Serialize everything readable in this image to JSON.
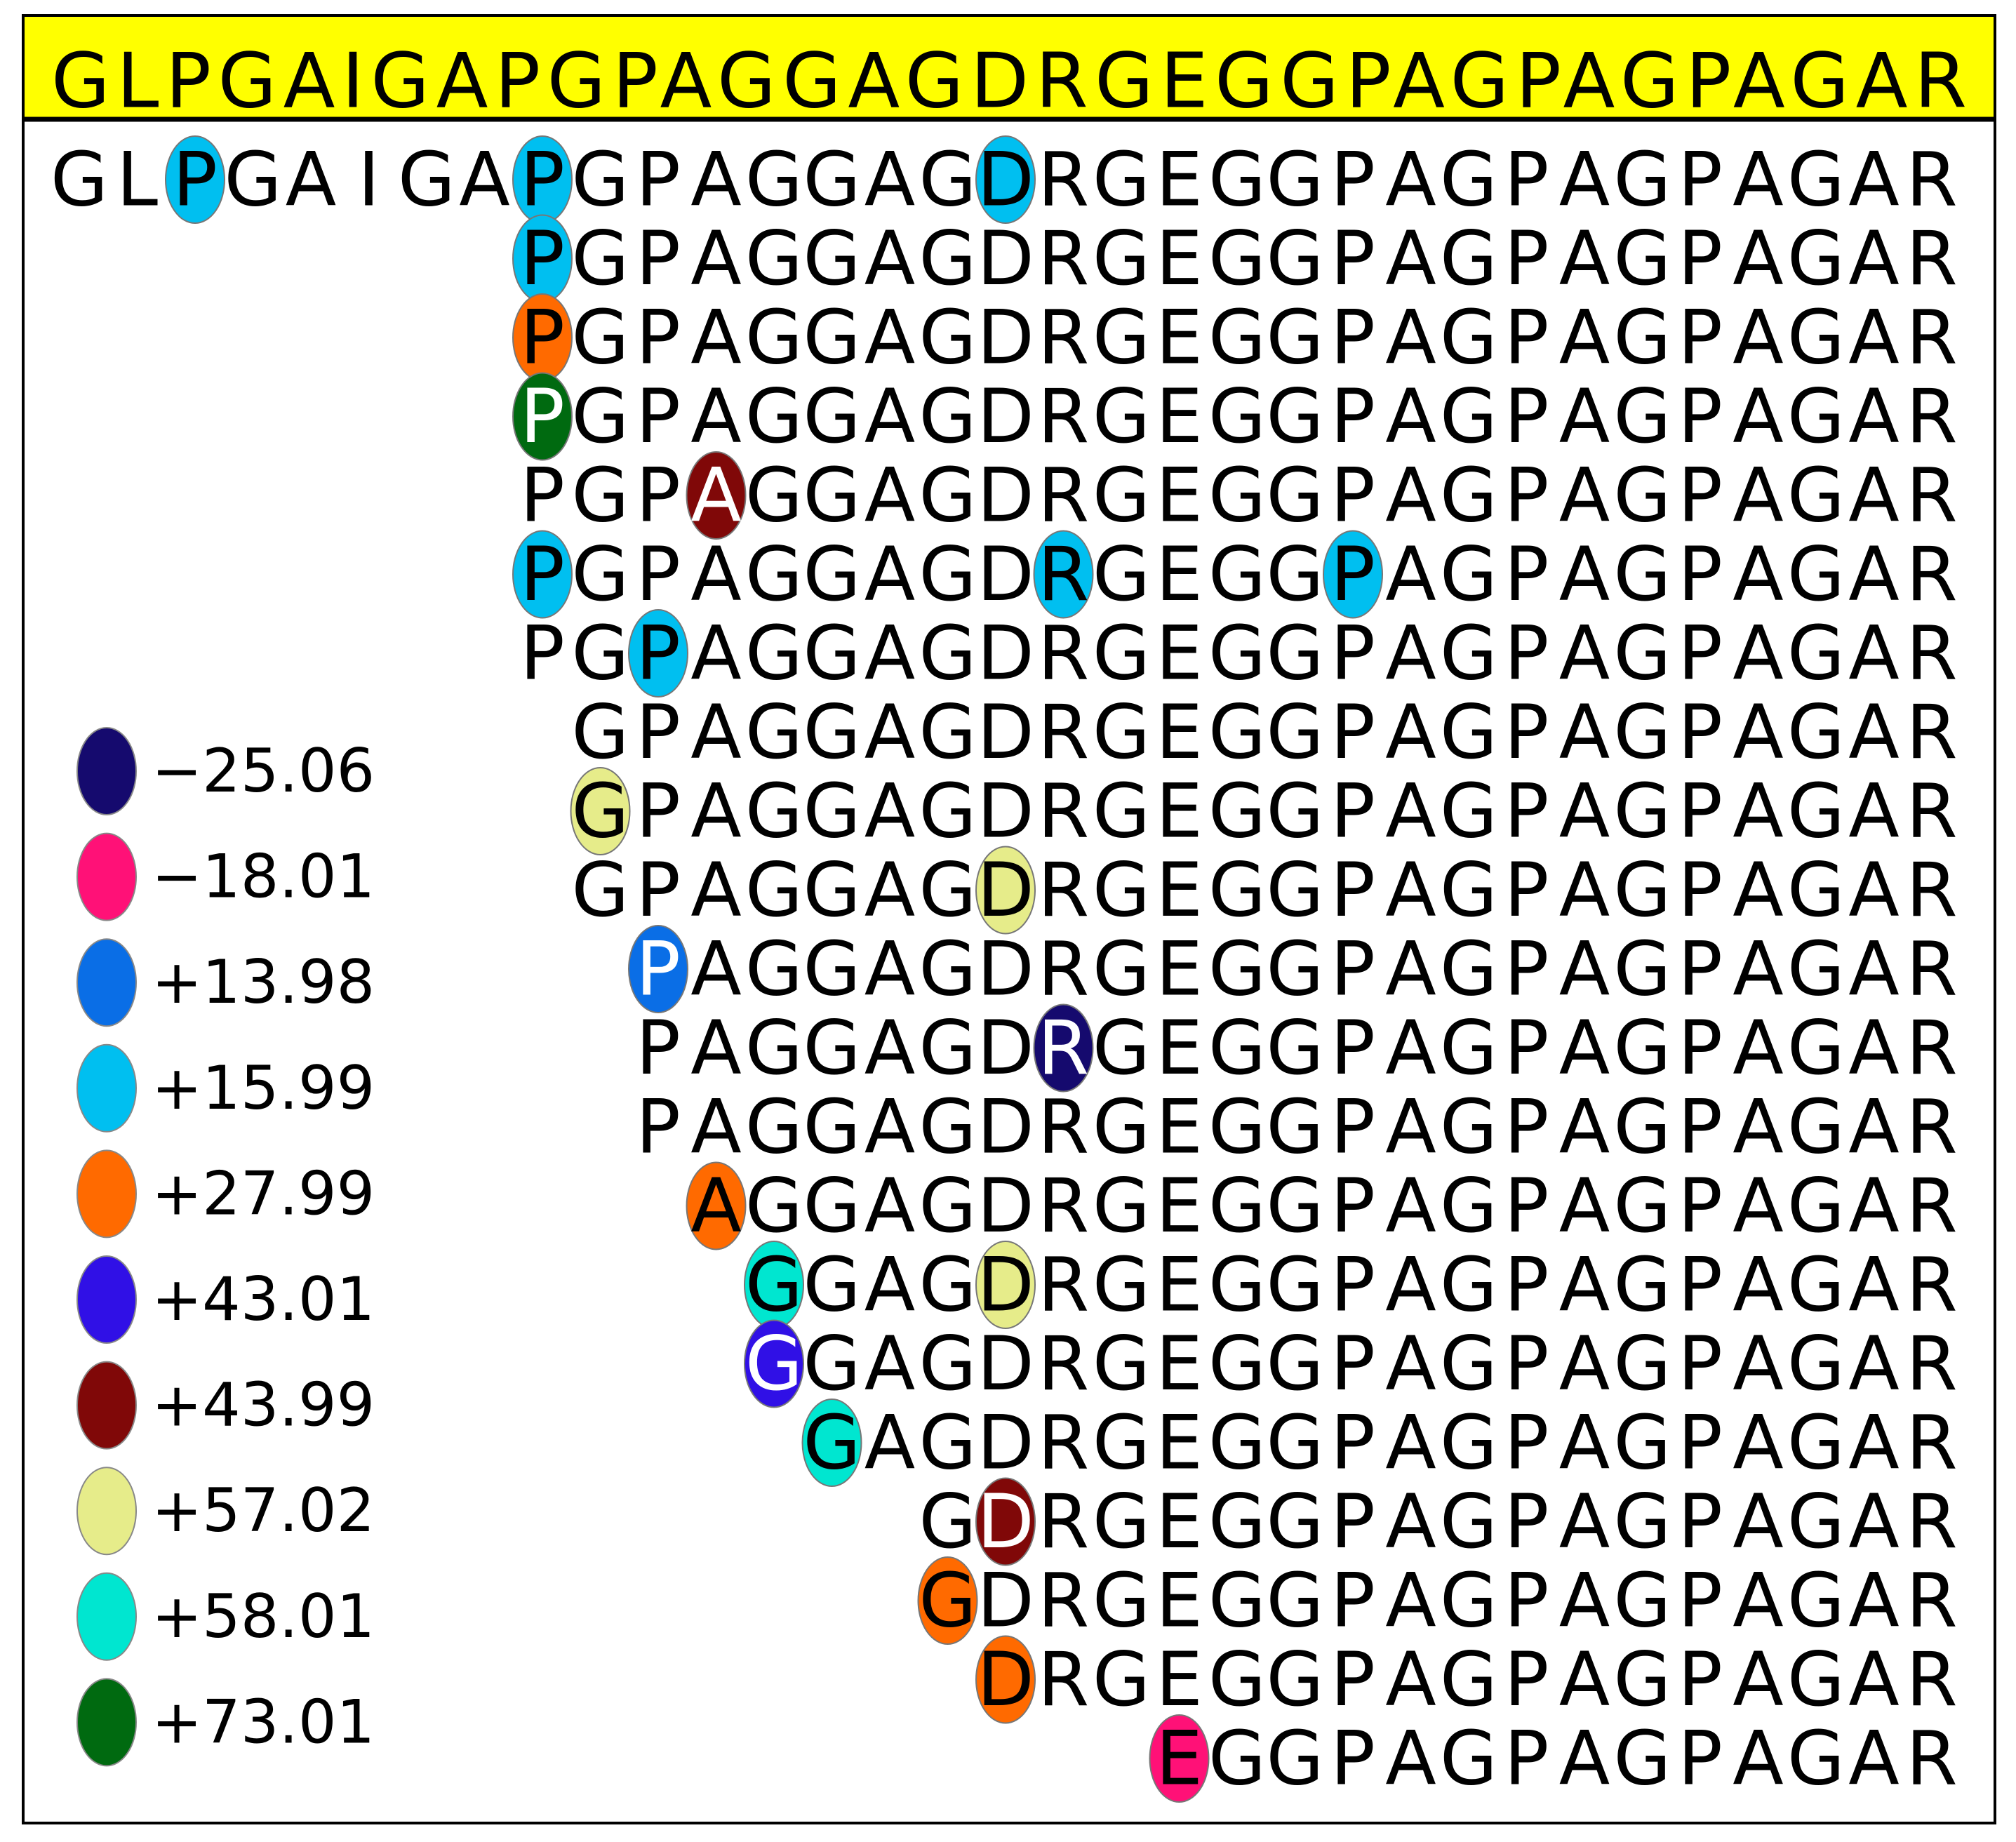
{
  "header": {
    "sequence": "GLPGAIGAPGPAGGAGDRGEGGPAGPAGPAGAR"
  },
  "legend": [
    {
      "label": "−25.06",
      "color": "#150a6e"
    },
    {
      "label": "−18.01",
      "color": "#ff1177"
    },
    {
      "label": "+13.98",
      "color": "#0a6ee6"
    },
    {
      "label": "+15.99",
      "color": "#00bff0"
    },
    {
      "label": "+27.99",
      "color": "#ff6a00"
    },
    {
      "label": "+43.01",
      "color": "#3010e6"
    },
    {
      "label": "+43.99",
      "color": "#800808"
    },
    {
      "label": "+57.02",
      "color": "#e6ec8a"
    },
    {
      "label": "+58.01",
      "color": "#00e6d0"
    },
    {
      "label": "+73.01",
      "color": "#006a10"
    }
  ],
  "rows": [
    [
      "G",
      "L",
      {
        "letter": "P",
        "color": "#00bff0",
        "text_color": "#000000"
      },
      "G",
      "A",
      "I",
      "G",
      "A",
      {
        "letter": "P",
        "color": "#00bff0",
        "text_color": "#000000"
      },
      "G",
      "P",
      "A",
      "G",
      "G",
      "A",
      "G",
      {
        "letter": "D",
        "color": "#00bff0",
        "text_color": "#000000"
      },
      "R",
      "G",
      "E",
      "G",
      "G",
      "P",
      "A",
      "G",
      "P",
      "A",
      "G",
      "P",
      "A",
      "G",
      "A",
      "R"
    ],
    [
      {
        "letter": "P",
        "color": "#00bff0",
        "text_color": "#000000"
      },
      "G",
      "P",
      "A",
      "G",
      "G",
      "A",
      "G",
      "D",
      "R",
      "G",
      "E",
      "G",
      "G",
      "P",
      "A",
      "G",
      "P",
      "A",
      "G",
      "P",
      "A",
      "G",
      "A",
      "R"
    ],
    [
      {
        "letter": "P",
        "color": "#ff6a00",
        "text_color": "#000000"
      },
      "G",
      "P",
      "A",
      "G",
      "G",
      "A",
      "G",
      "D",
      "R",
      "G",
      "E",
      "G",
      "G",
      "P",
      "A",
      "G",
      "P",
      "A",
      "G",
      "P",
      "A",
      "G",
      "A",
      "R"
    ],
    [
      {
        "letter": "P",
        "color": "#006a10",
        "text_color": "#ffffff"
      },
      "G",
      "P",
      "A",
      "G",
      "G",
      "A",
      "G",
      "D",
      "R",
      "G",
      "E",
      "G",
      "G",
      "P",
      "A",
      "G",
      "P",
      "A",
      "G",
      "P",
      "A",
      "G",
      "A",
      "R"
    ],
    [
      "P",
      "G",
      "P",
      {
        "letter": "A",
        "color": "#800808",
        "text_color": "#ffffff"
      },
      "G",
      "G",
      "A",
      "G",
      "D",
      "R",
      "G",
      "E",
      "G",
      "G",
      "P",
      "A",
      "G",
      "P",
      "A",
      "G",
      "P",
      "A",
      "G",
      "A",
      "R"
    ],
    [
      {
        "letter": "P",
        "color": "#00bff0",
        "text_color": "#000000"
      },
      "G",
      "P",
      "A",
      "G",
      "G",
      "A",
      "G",
      "D",
      {
        "letter": "R",
        "color": "#00bff0",
        "text_color": "#000000"
      },
      "G",
      "E",
      "G",
      "G",
      {
        "letter": "P",
        "color": "#00bff0",
        "text_color": "#000000"
      },
      "A",
      "G",
      "P",
      "A",
      "G",
      "P",
      "A",
      "G",
      "A",
      "R"
    ],
    [
      "P",
      "G",
      {
        "letter": "P",
        "color": "#00bff0",
        "text_color": "#000000"
      },
      "A",
      "G",
      "G",
      "A",
      "G",
      "D",
      "R",
      "G",
      "E",
      "G",
      "G",
      "P",
      "A",
      "G",
      "P",
      "A",
      "G",
      "P",
      "A",
      "G",
      "A",
      "R"
    ],
    [
      "G",
      "P",
      "A",
      "G",
      "G",
      "A",
      "G",
      "D",
      "R",
      "G",
      "E",
      "G",
      "G",
      "P",
      "A",
      "G",
      "P",
      "A",
      "G",
      "P",
      "A",
      "G",
      "A",
      "R"
    ],
    [
      {
        "letter": "G",
        "color": "#e6ec8a",
        "text_color": "#000000"
      },
      "P",
      "A",
      "G",
      "G",
      "A",
      "G",
      "D",
      "R",
      "G",
      "E",
      "G",
      "G",
      "P",
      "A",
      "G",
      "P",
      "A",
      "G",
      "P",
      "A",
      "G",
      "A",
      "R"
    ],
    [
      "G",
      "P",
      "A",
      "G",
      "G",
      "A",
      "G",
      {
        "letter": "D",
        "color": "#e6ec8a",
        "text_color": "#000000"
      },
      "R",
      "G",
      "E",
      "G",
      "G",
      "P",
      "A",
      "G",
      "P",
      "A",
      "G",
      "P",
      "A",
      "G",
      "A",
      "R"
    ],
    [
      {
        "letter": "P",
        "color": "#0a6ee6",
        "text_color": "#ffffff"
      },
      "A",
      "G",
      "G",
      "A",
      "G",
      "D",
      "R",
      "G",
      "E",
      "G",
      "G",
      "P",
      "A",
      "G",
      "P",
      "A",
      "G",
      "P",
      "A",
      "G",
      "A",
      "R"
    ],
    [
      "P",
      "A",
      "G",
      "G",
      "A",
      "G",
      "D",
      {
        "letter": "R",
        "color": "#150a6e",
        "text_color": "#ffffff"
      },
      "G",
      "E",
      "G",
      "G",
      "P",
      "A",
      "G",
      "P",
      "A",
      "G",
      "P",
      "A",
      "G",
      "A",
      "R"
    ],
    [
      "P",
      "A",
      "G",
      "G",
      "A",
      "G",
      "D",
      "R",
      "G",
      "E",
      "G",
      "G",
      "P",
      "A",
      "G",
      "P",
      "A",
      "G",
      "P",
      "A",
      "G",
      "A",
      "R"
    ],
    [
      {
        "letter": "A",
        "color": "#ff6a00",
        "text_color": "#000000"
      },
      "G",
      "G",
      "A",
      "G",
      "D",
      "R",
      "G",
      "E",
      "G",
      "G",
      "P",
      "A",
      "G",
      "P",
      "A",
      "G",
      "P",
      "A",
      "G",
      "A",
      "R"
    ],
    [
      {
        "letter": "G",
        "color": "#00e6d0",
        "text_color": "#000000"
      },
      "G",
      "A",
      "G",
      {
        "letter": "D",
        "color": "#e6ec8a",
        "text_color": "#000000"
      },
      "R",
      "G",
      "E",
      "G",
      "G",
      "P",
      "A",
      "G",
      "P",
      "A",
      "G",
      "P",
      "A",
      "G",
      "A",
      "R"
    ],
    [
      {
        "letter": "G",
        "color": "#3010e6",
        "text_color": "#ffffff"
      },
      "G",
      "A",
      "G",
      "D",
      "R",
      "G",
      "E",
      "G",
      "G",
      "P",
      "A",
      "G",
      "P",
      "A",
      "G",
      "P",
      "A",
      "G",
      "A",
      "R"
    ],
    [
      {
        "letter": "G",
        "color": "#00e6d0",
        "text_color": "#000000"
      },
      "A",
      "G",
      "D",
      "R",
      "G",
      "E",
      "G",
      "G",
      "P",
      "A",
      "G",
      "P",
      "A",
      "G",
      "P",
      "A",
      "G",
      "A",
      "R"
    ],
    [
      "G",
      {
        "letter": "D",
        "color": "#800808",
        "text_color": "#ffffff"
      },
      "R",
      "G",
      "E",
      "G",
      "G",
      "P",
      "A",
      "G",
      "P",
      "A",
      "G",
      "P",
      "A",
      "G",
      "A",
      "R"
    ],
    [
      {
        "letter": "G",
        "color": "#ff6a00",
        "text_color": "#000000"
      },
      "D",
      "R",
      "G",
      "E",
      "G",
      "G",
      "P",
      "A",
      "G",
      "P",
      "A",
      "G",
      "P",
      "A",
      "G",
      "A",
      "R"
    ],
    [
      {
        "letter": "D",
        "color": "#ff6a00",
        "text_color": "#000000"
      },
      "R",
      "G",
      "E",
      "G",
      "G",
      "P",
      "A",
      "G",
      "P",
      "A",
      "G",
      "P",
      "A",
      "G",
      "A",
      "R"
    ],
    [
      {
        "letter": "E",
        "color": "#ff1177",
        "text_color": "#000000"
      },
      "G",
      "G",
      "P",
      "A",
      "G",
      "P",
      "A",
      "G",
      "P",
      "A",
      "G",
      "A",
      "R"
    ]
  ]
}
